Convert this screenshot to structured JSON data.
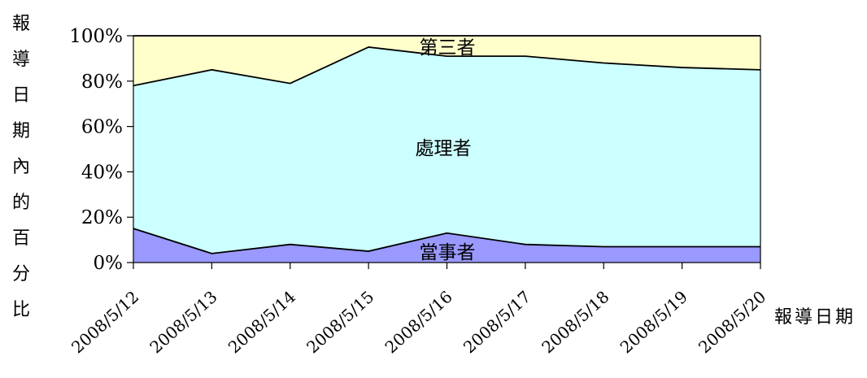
{
  "chart_data": {
    "type": "area",
    "stacked": "percent",
    "categories": [
      "2008/5/12",
      "2008/5/13",
      "2008/5/14",
      "2008/5/15",
      "2008/5/16",
      "2008/5/17",
      "2008/5/18",
      "2008/5/19",
      "2008/5/20"
    ],
    "series": [
      {
        "name": "當事者",
        "values": [
          15,
          4,
          8,
          5,
          13,
          8,
          7,
          7,
          7
        ],
        "color": "#9999ff"
      },
      {
        "name": "處理者",
        "values": [
          63,
          81,
          71,
          90,
          78,
          83,
          81,
          79,
          78
        ],
        "color": "#ccffff"
      },
      {
        "name": "第三者",
        "values": [
          22,
          15,
          21,
          5,
          9,
          9,
          12,
          14,
          15
        ],
        "color": "#ffffcc"
      }
    ],
    "ylabel": "報導日期內的百分比",
    "xlabel": "報導日期",
    "ylim": [
      0,
      100
    ],
    "yticks": [
      "0%",
      "20%",
      "40%",
      "60%",
      "80%",
      "100%"
    ],
    "grid": false,
    "legend": "none"
  }
}
